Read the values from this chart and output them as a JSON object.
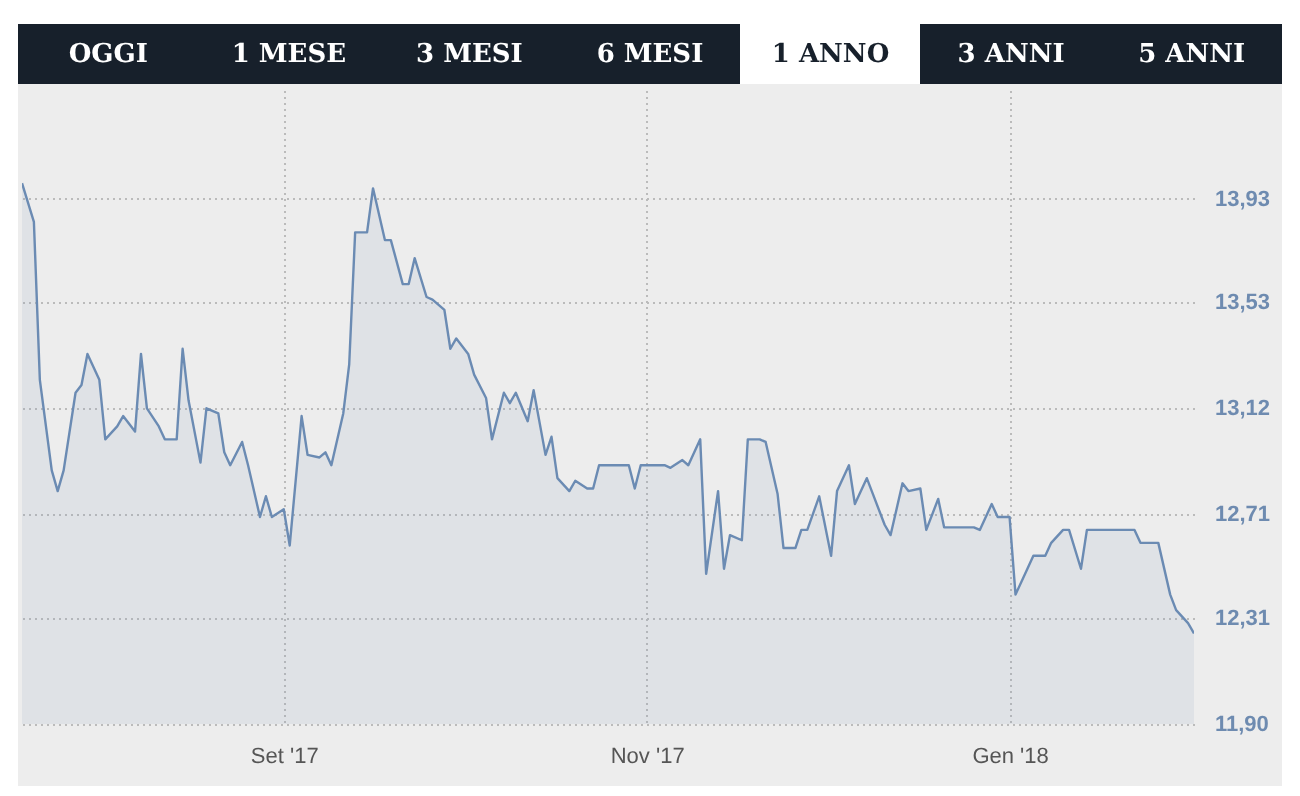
{
  "chart_data": {
    "type": "area",
    "annotations": [
      "OGGI",
      "1 MESE",
      "3 MESI",
      "6 MESI",
      "1 ANNO",
      "3 ANNI",
      "5 ANNI"
    ],
    "x": [
      "2017-07-19",
      "2017-07-21",
      "2017-07-22",
      "2017-07-24",
      "2017-07-25",
      "2017-07-26",
      "2017-07-28",
      "2017-07-29",
      "2017-07-30",
      "2017-08-01",
      "2017-08-02",
      "2017-08-04",
      "2017-08-05",
      "2017-08-07",
      "2017-08-08",
      "2017-08-09",
      "2017-08-11",
      "2017-08-12",
      "2017-08-14",
      "2017-08-15",
      "2017-08-16",
      "2017-08-18",
      "2017-08-19",
      "2017-08-21",
      "2017-08-22",
      "2017-08-23",
      "2017-08-25",
      "2017-08-26",
      "2017-08-28",
      "2017-08-29",
      "2017-08-30",
      "2017-09-01",
      "2017-09-02",
      "2017-09-04",
      "2017-09-05",
      "2017-09-07",
      "2017-09-08",
      "2017-09-09",
      "2017-09-11",
      "2017-09-12",
      "2017-09-13",
      "2017-09-15",
      "2017-09-16",
      "2017-09-18",
      "2017-09-19",
      "2017-09-21",
      "2017-09-22",
      "2017-09-23",
      "2017-09-25",
      "2017-09-26",
      "2017-09-28",
      "2017-09-29",
      "2017-09-30",
      "2017-10-02",
      "2017-10-03",
      "2017-10-05",
      "2017-10-06",
      "2017-10-08",
      "2017-10-09",
      "2017-10-10",
      "2017-10-12",
      "2017-10-13",
      "2017-10-15",
      "2017-10-16",
      "2017-10-17",
      "2017-10-19",
      "2017-10-20",
      "2017-10-22",
      "2017-10-23",
      "2017-10-24",
      "2017-10-26",
      "2017-10-27",
      "2017-10-29",
      "2017-10-30",
      "2017-10-31",
      "2017-11-02",
      "2017-11-04",
      "2017-11-05",
      "2017-11-07",
      "2017-11-08",
      "2017-11-10",
      "2017-11-11",
      "2017-11-13",
      "2017-11-14",
      "2017-11-15",
      "2017-11-17",
      "2017-11-18",
      "2017-11-20",
      "2017-11-21",
      "2017-11-23",
      "2017-11-24",
      "2017-11-26",
      "2017-11-27",
      "2017-11-28",
      "2017-11-30",
      "2017-12-02",
      "2017-12-03",
      "2017-12-05",
      "2017-12-06",
      "2017-12-08",
      "2017-12-09",
      "2017-12-11",
      "2017-12-12",
      "2017-12-14",
      "2017-12-15",
      "2017-12-17",
      "2017-12-18",
      "2017-12-20",
      "2017-12-21",
      "2017-12-23",
      "2017-12-24",
      "2017-12-26",
      "2017-12-27",
      "2017-12-29",
      "2017-12-30",
      "2018-01-01",
      "2018-01-02",
      "2018-01-04",
      "2018-01-05",
      "2018-01-07",
      "2018-01-08",
      "2018-01-10",
      "2018-01-11",
      "2018-01-13",
      "2018-01-14",
      "2018-01-16",
      "2018-01-17",
      "2018-01-19",
      "2018-01-20",
      "2018-01-22",
      "2018-01-23",
      "2018-01-25",
      "2018-01-26",
      "2018-01-28",
      "2018-01-29",
      "2018-01-31",
      "2018-02-01"
    ],
    "series": [
      {
        "color": "#6b8bb3",
        "values": [
          13.99,
          13.84,
          13.23,
          12.88,
          12.8,
          12.88,
          13.18,
          13.21,
          13.33,
          13.23,
          13.0,
          13.05,
          13.09,
          13.03,
          13.33,
          13.12,
          13.05,
          13.0,
          13.0,
          13.35,
          13.15,
          12.91,
          13.12,
          13.1,
          12.95,
          12.9,
          12.99,
          12.9,
          12.7,
          12.78,
          12.7,
          12.73,
          12.59,
          13.09,
          12.94,
          12.93,
          12.95,
          12.9,
          13.1,
          13.29,
          13.8,
          13.8,
          13.97,
          13.77,
          13.77,
          13.6,
          13.6,
          13.7,
          13.55,
          13.54,
          13.5,
          13.35,
          13.39,
          13.33,
          13.25,
          13.16,
          13.0,
          13.18,
          13.14,
          13.18,
          13.07,
          13.19,
          12.94,
          13.01,
          12.85,
          12.8,
          12.84,
          12.81,
          12.81,
          12.9,
          12.9,
          12.9,
          12.9,
          12.81,
          12.9,
          12.9,
          12.9,
          12.89,
          12.92,
          12.9,
          13.0,
          12.48,
          12.8,
          12.5,
          12.63,
          12.61,
          13.0,
          13.0,
          12.99,
          12.79,
          12.58,
          12.58,
          12.65,
          12.65,
          12.78,
          12.55,
          12.8,
          12.9,
          12.75,
          12.85,
          12.79,
          12.67,
          12.63,
          12.83,
          12.8,
          12.81,
          12.65,
          12.77,
          12.66,
          12.66,
          12.66,
          12.66,
          12.65,
          12.75,
          12.7,
          12.7,
          12.4,
          12.5,
          12.55,
          12.55,
          12.6,
          12.65,
          12.65,
          12.5,
          12.65,
          12.65,
          12.65,
          12.65,
          12.65,
          12.65,
          12.6,
          12.6,
          12.6,
          12.4,
          12.34,
          12.29,
          12.25
        ]
      }
    ],
    "xlim": [
      "2017-07-19",
      "2018-02-01"
    ],
    "xticks": [
      {
        "value": "2017-09-01",
        "label": "Set '17"
      },
      {
        "value": "2017-11-01",
        "label": "Nov '17"
      },
      {
        "value": "2018-01-01",
        "label": "Gen '18"
      }
    ],
    "ylim": [
      11.9,
      14.35
    ],
    "yticks": [
      {
        "value": 11.9,
        "label": "11,90"
      },
      {
        "value": 12.31,
        "label": "12,31"
      },
      {
        "value": 12.71,
        "label": "12,71"
      },
      {
        "value": 13.12,
        "label": "13,12"
      },
      {
        "value": 13.53,
        "label": "13,53"
      },
      {
        "value": 13.93,
        "label": "13,93"
      }
    ],
    "grid": true
  }
}
